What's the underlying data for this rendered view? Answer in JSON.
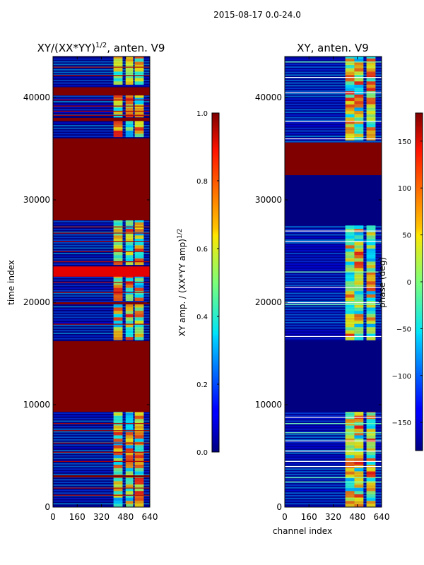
{
  "suptitle": "2015-08-17 0.0-24.0",
  "chart_data": [
    {
      "type": "heatmap",
      "title_main": "XY/(XX*YY)",
      "title_sup": "1/2",
      "title_rest": ", anten. V9",
      "xlabel": "",
      "ylabel": "time index",
      "xticks": [
        0,
        160,
        320,
        480,
        640
      ],
      "xlim": [
        0,
        640
      ],
      "yticks": [
        0,
        10000,
        20000,
        30000,
        40000
      ],
      "ylim": [
        0,
        44000
      ],
      "colorbar": {
        "label_main": "XY amp. / (XX*YY amp)",
        "label_sup": "1/2",
        "range": [
          0.0,
          1.0
        ],
        "ticks": [
          "0.0",
          "0.2",
          "0.4",
          "0.6",
          "0.8",
          "1.0"
        ],
        "tick_values": [
          0,
          0.2,
          0.4,
          0.6,
          0.8,
          1.0
        ],
        "colormap": "jet"
      },
      "background_color": "#00007f",
      "bands": [
        {
          "y0": 9300,
          "y1": 16200,
          "value": 1.0
        },
        {
          "y0": 19800,
          "y1": 20000,
          "value": 1.0
        },
        {
          "y0": 28000,
          "y1": 36000,
          "value": 1.0
        },
        {
          "y0": 37700,
          "y1": 38000,
          "value": 1.0
        },
        {
          "y0": 40200,
          "y1": 41000,
          "value": 1.0
        },
        {
          "y0": 2900,
          "y1": 3100,
          "value": 1.0
        },
        {
          "y0": 22500,
          "y1": 23500,
          "value": 0.9
        }
      ],
      "lines_y": [
        1200,
        1900,
        4500,
        5400,
        6300,
        7500,
        8200,
        17900,
        21000,
        22000,
        24000,
        25000,
        26000,
        26800,
        27400,
        38300,
        38700,
        39200,
        39800,
        42200,
        43000
      ],
      "hot_ranges_x": [
        [
          400,
          460
        ],
        [
          480,
          530
        ],
        [
          540,
          600
        ]
      ]
    },
    {
      "type": "heatmap",
      "title_main": "XY, anten. V9",
      "xlabel": "channel index",
      "ylabel": "",
      "xticks": [
        0,
        160,
        320,
        480,
        640
      ],
      "xlim": [
        0,
        640
      ],
      "yticks": [
        0,
        10000,
        20000,
        30000,
        40000
      ],
      "ylim": [
        0,
        44000
      ],
      "colorbar": {
        "label_main": "phase (deg)",
        "range": [
          -180,
          180
        ],
        "ticks": [
          "−150",
          "−100",
          "−50",
          "0",
          "50",
          "100",
          "150"
        ],
        "tick_values": [
          -150,
          -100,
          -50,
          0,
          50,
          100,
          150
        ],
        "colormap": "jet"
      },
      "background_color": "#00008f",
      "bands": [
        {
          "y0": 32400,
          "y1": 35600,
          "value": 1.0
        },
        {
          "y0": 9300,
          "y1": 16200,
          "value": 0.0
        },
        {
          "y0": 27500,
          "y1": 32400,
          "value": 0.0
        }
      ],
      "lines_y": [
        2500,
        2900,
        4000,
        4500,
        5500,
        6500,
        7300,
        8200,
        8800,
        16700,
        19800,
        20000,
        21500,
        23000,
        26000,
        27000,
        36000,
        37700,
        40500,
        42000,
        43500
      ],
      "hot_ranges_x": [
        [
          400,
          460
        ],
        [
          460,
          520
        ],
        [
          540,
          600
        ]
      ]
    }
  ]
}
